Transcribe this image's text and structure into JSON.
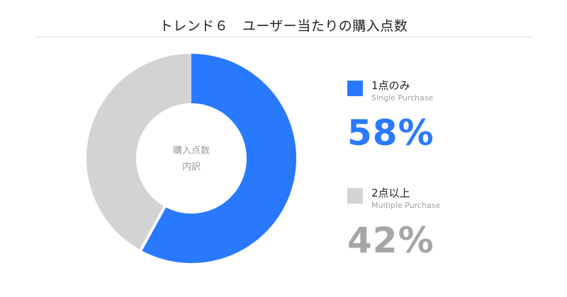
{
  "title": "トレンド６　ユーザー当たりの購入点数",
  "center_label": {
    "line1": "購入点数",
    "line2": "内訳"
  },
  "legend": [
    {
      "label": "1点のみ",
      "sublabel": "Single Purchase",
      "percent_text": "58%",
      "color": "#2979ff",
      "text_color": "#2979ff"
    },
    {
      "label": "2点以上",
      "sublabel": "Multiple Purchase",
      "percent_text": "42%",
      "color": "#d3d3d3",
      "text_color": "#a6a6a6"
    }
  ],
  "chart_data": {
    "type": "pie",
    "subtype": "donut",
    "title": "トレンド６　ユーザー当たりの購入点数",
    "center_text": "購入点数 内訳",
    "categories": [
      "1点のみ (Single Purchase)",
      "2点以上 (Multiple Purchase)"
    ],
    "values": [
      58,
      42
    ],
    "unit": "%",
    "colors": [
      "#2979ff",
      "#d3d3d3"
    ],
    "start_angle": "12 o'clock, clockwise",
    "legend_position": "right"
  }
}
